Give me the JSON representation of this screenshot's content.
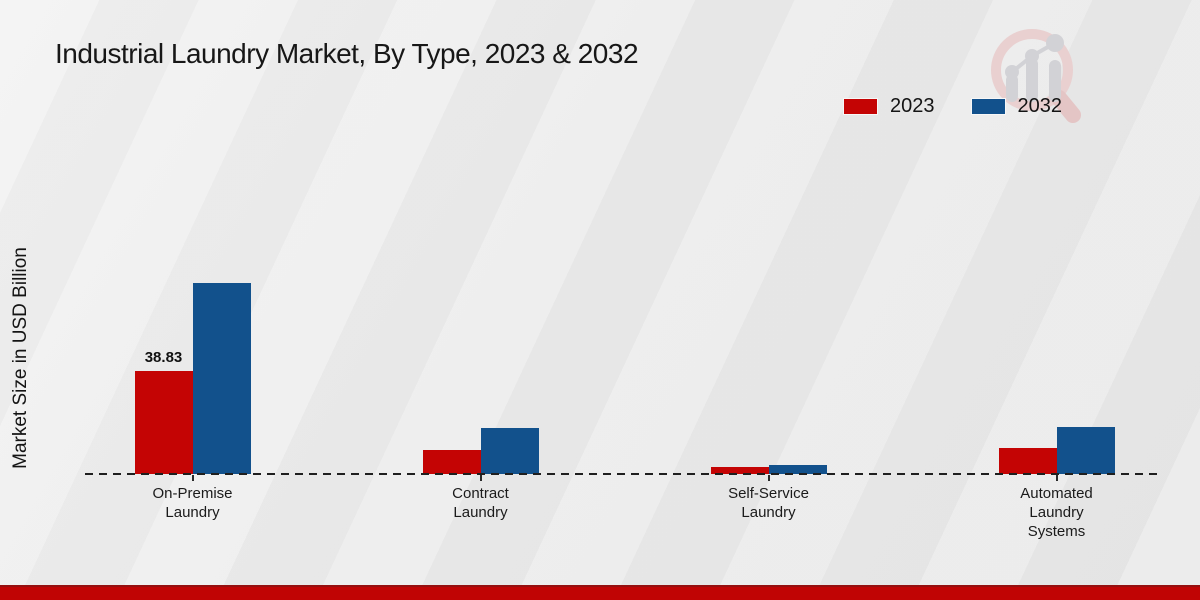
{
  "page": {
    "title": "Industrial Laundry Market, By Type, 2023 & 2032"
  },
  "colors": {
    "series_2023_red": "#c40404",
    "series_2032_blue": "#12518c",
    "background_gray": "#eaeaea",
    "footer_band_red": "#c00404",
    "baseline_black": "#1f1f1f",
    "watermark_ring_pink": "#e9d0d0",
    "watermark_bars_gray": "#d2d2d6"
  },
  "watermark": {
    "icon": "magnifier-bar-chart-logo"
  },
  "chart_data": {
    "type": "bar",
    "title": "Industrial Laundry Market, By Type, 2023 & 2032",
    "xlabel": "",
    "ylabel": "Market Size in USD Billion",
    "categories": [
      "On-Premise Laundry",
      "Contract Laundry",
      "Self-Service Laundry",
      "Automated Laundry Systems"
    ],
    "categories_lines": [
      [
        "On-Premise",
        "Laundry"
      ],
      [
        "Contract",
        "Laundry"
      ],
      [
        "Self-Service",
        "Laundry"
      ],
      [
        "Automated",
        "Laundry",
        "Systems"
      ]
    ],
    "series": [
      {
        "name": "2023",
        "color": "#c40404",
        "values": [
          38.83,
          9.0,
          2.5,
          9.8
        ]
      },
      {
        "name": "2032",
        "color": "#12518c",
        "values": [
          72.0,
          17.3,
          3.5,
          17.9
        ]
      }
    ],
    "value_labels": [
      {
        "series_index": 0,
        "category_index": 0,
        "text": "38.83"
      }
    ],
    "ylim": [
      0,
      80
    ],
    "grid": false,
    "baseline_style": "dashed",
    "legend_position": "top-right"
  }
}
